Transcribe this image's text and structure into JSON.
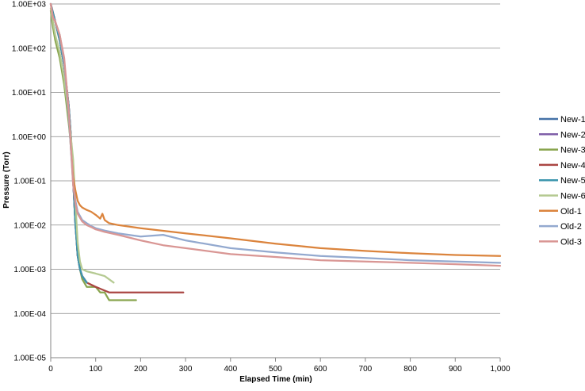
{
  "chart_data": {
    "type": "line",
    "xlabel": "Elapsed Time (min)",
    "ylabel": "Pressure (Torr)",
    "xlim": [
      0,
      1000
    ],
    "ylim": [
      1e-05,
      1000
    ],
    "y_scale": "log",
    "grid": "horizontal",
    "legend_position": "right",
    "x_ticks": [
      "0",
      "100",
      "200",
      "300",
      "400",
      "500",
      "600",
      "700",
      "800",
      "900",
      "1,000"
    ],
    "x_tick_values": [
      0,
      100,
      200,
      300,
      400,
      500,
      600,
      700,
      800,
      900,
      1000
    ],
    "y_ticks": [
      "1.00E-05",
      "1.00E-04",
      "1.00E-03",
      "1.00E-02",
      "1.00E-01",
      "1.00E+00",
      "1.00E+01",
      "1.00E+02",
      "1.00E+03"
    ],
    "y_tick_values": [
      1e-05,
      0.0001,
      0.001,
      0.01,
      0.1,
      1,
      10,
      100,
      1000
    ],
    "series": [
      {
        "name": "New-1",
        "color": "#4572a7",
        "x": [
          0,
          10,
          20,
          30,
          40,
          45,
          50,
          55,
          60,
          65,
          70,
          75,
          80
        ],
        "y": [
          1000,
          400,
          150,
          40,
          5,
          1,
          0.1,
          0.01,
          0.002,
          0.001,
          0.0007,
          0.0006,
          0.0005
        ]
      },
      {
        "name": "New-2",
        "color": "#7f5fa8",
        "x": [
          0,
          10,
          20,
          30,
          40,
          45,
          50,
          55,
          60,
          65,
          70,
          75,
          80
        ],
        "y": [
          1000,
          400,
          150,
          40,
          5,
          1,
          0.1,
          0.01,
          0.002,
          0.001,
          0.0007,
          0.0006,
          0.0005
        ]
      },
      {
        "name": "New-3",
        "color": "#89a54e",
        "x": [
          0,
          5,
          10,
          20,
          30,
          40,
          50,
          55,
          60,
          65,
          70,
          80,
          100,
          110,
          120,
          130,
          140,
          170,
          180,
          190
        ],
        "y": [
          700,
          300,
          150,
          60,
          15,
          2,
          0.2,
          0.02,
          0.003,
          0.001,
          0.0006,
          0.0004,
          0.0004,
          0.0003,
          0.0003,
          0.0002,
          0.0002,
          0.0002,
          0.0002,
          0.0002
        ]
      },
      {
        "name": "New-4",
        "color": "#aa4643",
        "x": [
          0,
          10,
          20,
          30,
          40,
          45,
          50,
          55,
          60,
          65,
          70,
          80,
          100,
          130,
          150,
          180,
          200,
          295
        ],
        "y": [
          1000,
          400,
          150,
          40,
          5,
          1,
          0.1,
          0.01,
          0.002,
          0.001,
          0.0007,
          0.0005,
          0.0004,
          0.0003,
          0.0003,
          0.0003,
          0.0003,
          0.0003
        ]
      },
      {
        "name": "New-5",
        "color": "#3d96ae",
        "x": [
          0,
          10,
          20,
          30,
          40,
          45,
          50,
          55,
          60,
          65,
          70,
          80
        ],
        "y": [
          1000,
          400,
          150,
          40,
          5,
          1,
          0.1,
          0.01,
          0.002,
          0.001,
          0.0007,
          0.0005
        ]
      },
      {
        "name": "New-6",
        "color": "#b5ca92",
        "x": [
          0,
          5,
          10,
          20,
          30,
          40,
          50,
          55,
          60,
          65,
          70,
          80,
          100,
          120,
          140
        ],
        "y": [
          800,
          400,
          200,
          80,
          20,
          3,
          0.3,
          0.03,
          0.004,
          0.0015,
          0.001,
          0.0009,
          0.0008,
          0.0007,
          0.0005
        ]
      },
      {
        "name": "Old-1",
        "color": "#db843d",
        "x": [
          0,
          5,
          10,
          20,
          30,
          40,
          45,
          50,
          55,
          60,
          65,
          70,
          80,
          90,
          100,
          110,
          115,
          120,
          130,
          150,
          200,
          300,
          400,
          500,
          600,
          700,
          800,
          900,
          1000
        ],
        "y": [
          1000,
          500,
          400,
          200,
          50,
          3,
          0.5,
          0.12,
          0.06,
          0.035,
          0.028,
          0.025,
          0.022,
          0.02,
          0.017,
          0.014,
          0.018,
          0.013,
          0.011,
          0.01,
          0.0085,
          0.0065,
          0.005,
          0.0038,
          0.003,
          0.0026,
          0.0023,
          0.0021,
          0.002
        ]
      },
      {
        "name": "Old-2",
        "color": "#93a9cf",
        "x": [
          0,
          5,
          10,
          20,
          30,
          40,
          45,
          50,
          55,
          60,
          70,
          80,
          90,
          100,
          120,
          150,
          200,
          250,
          300,
          400,
          500,
          600,
          700,
          800,
          900,
          1000
        ],
        "y": [
          1000,
          500,
          400,
          200,
          50,
          3,
          0.5,
          0.08,
          0.035,
          0.02,
          0.013,
          0.011,
          0.0095,
          0.0085,
          0.0075,
          0.0065,
          0.0055,
          0.006,
          0.0045,
          0.003,
          0.0024,
          0.002,
          0.0018,
          0.0016,
          0.0015,
          0.0014
        ]
      },
      {
        "name": "Old-3",
        "color": "#d99694",
        "x": [
          0,
          5,
          10,
          20,
          30,
          40,
          45,
          50,
          55,
          60,
          70,
          80,
          90,
          100,
          120,
          150,
          200,
          250,
          300,
          400,
          500,
          600,
          700,
          800,
          900,
          1000
        ],
        "y": [
          1000,
          500,
          400,
          200,
          60,
          4,
          0.6,
          0.08,
          0.03,
          0.018,
          0.012,
          0.01,
          0.009,
          0.008,
          0.007,
          0.006,
          0.0045,
          0.0035,
          0.003,
          0.0022,
          0.0019,
          0.0016,
          0.0015,
          0.0014,
          0.0013,
          0.0012
        ]
      }
    ]
  }
}
